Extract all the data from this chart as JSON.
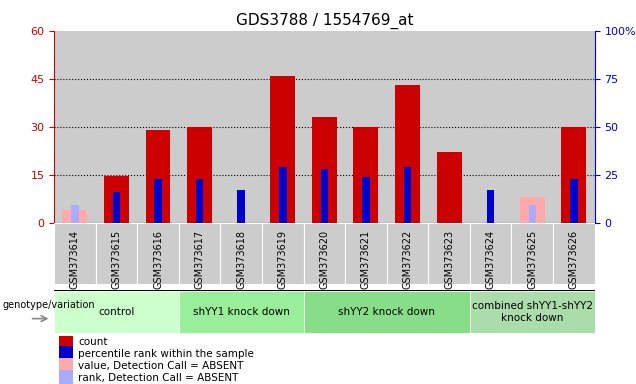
{
  "title": "GDS3788 / 1554769_at",
  "samples": [
    "GSM373614",
    "GSM373615",
    "GSM373616",
    "GSM373617",
    "GSM373618",
    "GSM373619",
    "GSM373620",
    "GSM373621",
    "GSM373622",
    "GSM373623",
    "GSM373624",
    "GSM373625",
    "GSM373626"
  ],
  "red_values": [
    0,
    14.5,
    29,
    30,
    0,
    46,
    33,
    30,
    43,
    22,
    0,
    0,
    30
  ],
  "blue_values": [
    0,
    16,
    23,
    23,
    17,
    29,
    28,
    24,
    29,
    0,
    17,
    0,
    23
  ],
  "pink_values": [
    4,
    0,
    0,
    0,
    0,
    0,
    0,
    0,
    0,
    0,
    0,
    8,
    0
  ],
  "lightblue_values": [
    9,
    0,
    0,
    0,
    0,
    0,
    0,
    0,
    0,
    0,
    0,
    9,
    0
  ],
  "groups": [
    {
      "label": "control",
      "start": 0,
      "end": 2,
      "color": "#ccffcc"
    },
    {
      "label": "shYY1 knock down",
      "start": 3,
      "end": 5,
      "color": "#99ee99"
    },
    {
      "label": "shYY2 knock down",
      "start": 6,
      "end": 9,
      "color": "#88dd88"
    },
    {
      "label": "combined shYY1-shYY2\nknock down",
      "start": 10,
      "end": 12,
      "color": "#aaddaa"
    }
  ],
  "left_ylim": [
    0,
    60
  ],
  "right_ylim": [
    0,
    100
  ],
  "left_yticks": [
    0,
    15,
    30,
    45,
    60
  ],
  "right_yticks": [
    0,
    25,
    50,
    75,
    100
  ],
  "left_ycolor": "#cc0000",
  "right_ycolor": "#0000cc",
  "col_bg_color": "#cccccc",
  "bar_width": 0.6,
  "blue_bar_width": 0.18,
  "legend_items": [
    {
      "label": "count",
      "color": "#cc0000"
    },
    {
      "label": "percentile rank within the sample",
      "color": "#0000cc"
    },
    {
      "label": "value, Detection Call = ABSENT",
      "color": "#ffaaaa"
    },
    {
      "label": "rank, Detection Call = ABSENT",
      "color": "#aaaaff"
    }
  ],
  "genotype_label": "genotype/variation"
}
